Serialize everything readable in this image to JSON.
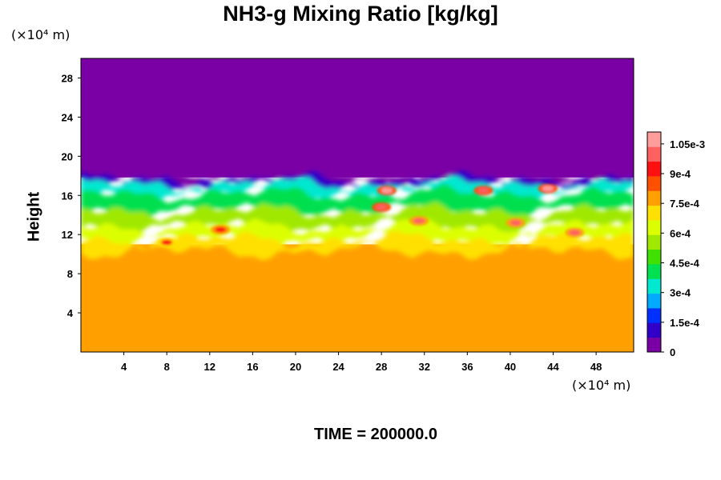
{
  "chart_data": {
    "type": "heatmap",
    "title": "NH3-g Mixing Ratio [kg/kg]",
    "ylabel": "Height",
    "xlabel": "",
    "x_unit": "(×10⁴ m)",
    "y_unit": "(×10⁴ m)",
    "xlim": [
      0,
      51.5
    ],
    "ylim": [
      0,
      30
    ],
    "x_ticks": [
      4,
      8,
      12,
      16,
      20,
      24,
      28,
      32,
      36,
      40,
      44,
      48
    ],
    "y_ticks": [
      4,
      8,
      12,
      16,
      20,
      24,
      28
    ],
    "colorbar": {
      "range": [
        0,
        0.00111
      ],
      "tick_values": [
        0,
        0.00015,
        0.0003,
        0.00045,
        0.0006,
        0.00075,
        0.0009,
        0.00105
      ],
      "tick_labels": [
        "0",
        "1.5e-4",
        "3e-4",
        "4.5e-4",
        "6e-4",
        "7.5e-4",
        "9e-4",
        "1.05e-3"
      ],
      "colors": [
        "#7a00a6",
        "#3000c8",
        "#0030ff",
        "#00aaff",
        "#00e8d0",
        "#00e050",
        "#40e000",
        "#a0e800",
        "#dcff00",
        "#ffe000",
        "#ffa000",
        "#ff5000",
        "#ff1010",
        "#ff6060",
        "#ff9c9c"
      ]
    },
    "regions": {
      "upper_value": 0,
      "lower_value": 0.00078,
      "mixing_layer_top_height": 18,
      "mixing_layer_bottom_height": 11
    },
    "hotspots": [
      {
        "x": 13,
        "y": 12.5,
        "value": 0.00093
      },
      {
        "x": 8,
        "y": 11.2,
        "value": 0.0009
      },
      {
        "x": 28,
        "y": 14.8,
        "value": 0.00102
      },
      {
        "x": 28.5,
        "y": 16.5,
        "value": 0.00106
      },
      {
        "x": 31.5,
        "y": 13.4,
        "value": 0.00099
      },
      {
        "x": 37.5,
        "y": 16.5,
        "value": 0.00103
      },
      {
        "x": 43.5,
        "y": 16.7,
        "value": 0.00104
      },
      {
        "x": 40.5,
        "y": 13.2,
        "value": 0.00097
      },
      {
        "x": 46,
        "y": 12.2,
        "value": 0.00098
      }
    ],
    "annotation": "TIME = 200000.0"
  }
}
